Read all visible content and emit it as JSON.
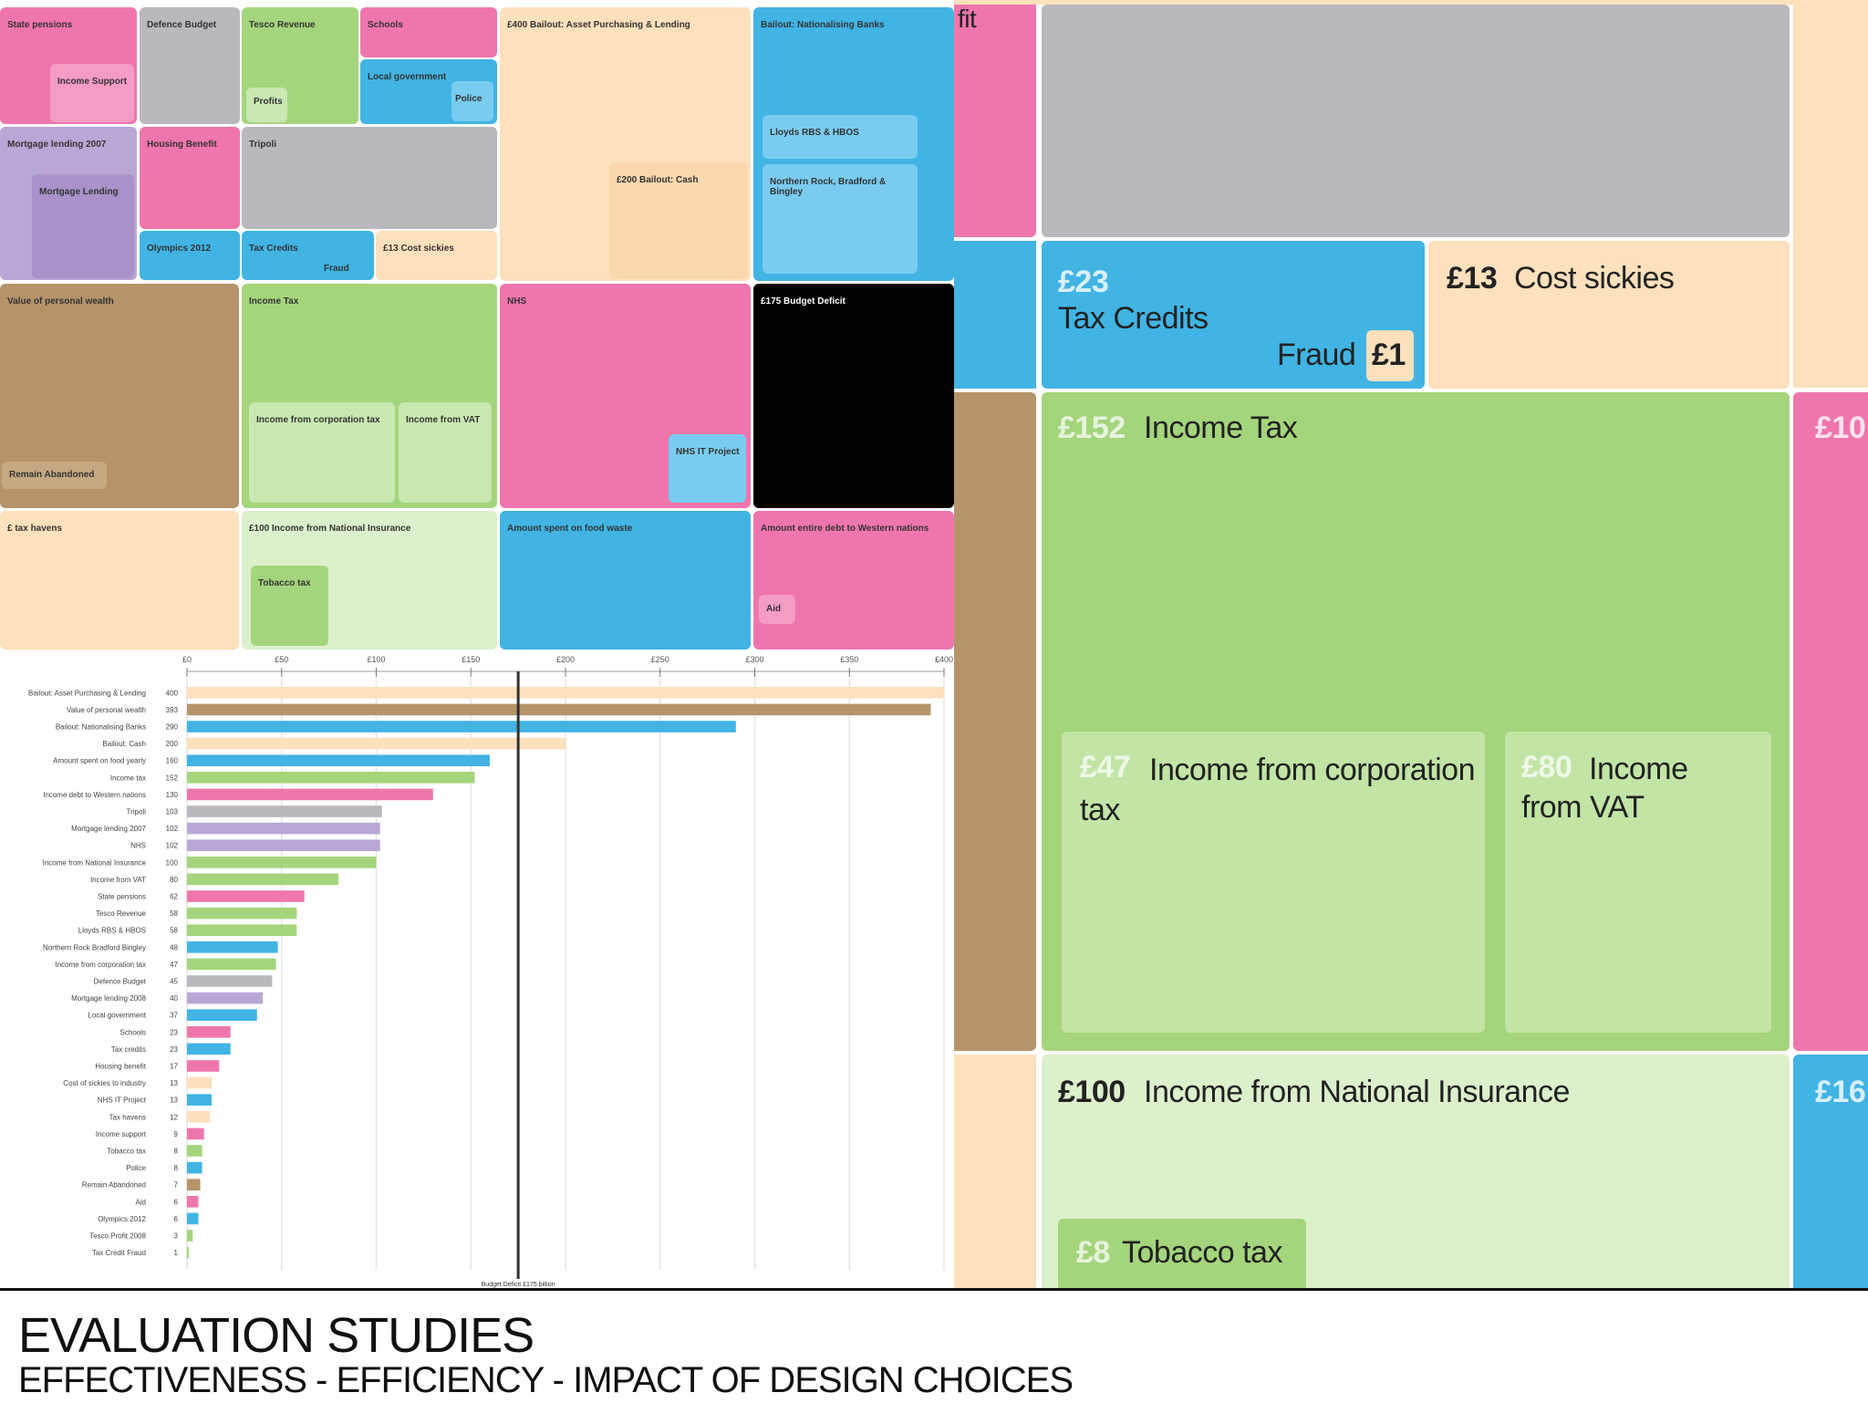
{
  "treemap_small": {
    "labels": {
      "state_pensions": "State pensions",
      "defence_budget": "Defence Budget",
      "tesco_revenue": "Tesco Revenue",
      "schools": "Schools",
      "bailout_purchasing": "£400 Bailout: Asset Purchasing & Lending",
      "bailout_nationalising": "Bailout: Nationalising Banks",
      "income_support": "Income Support",
      "profits": "Profits",
      "local_gov": "Local government",
      "police": "Police",
      "mortgage_2007": "Mortgage lending 2007",
      "housing_benefit": "Housing Benefit",
      "tripoli": "Tripoli",
      "bailout_cash": "£200 Bailout: Cash",
      "lloyds": "Lloyds RBS & HBOS",
      "mortgage_lending": "Mortgage Lending",
      "olympics": "Olympics 2012",
      "tax_credits": "Tax Credits",
      "fraud": "Fraud",
      "cost_sickies": "£13 Cost sickies",
      "northern": "Northern Rock, Bradford & Bingley",
      "value_personal": "Value of personal wealth",
      "income_tax": "Income Tax",
      "nhs": "NHS",
      "budget_deficit": "£175 Budget Deficit",
      "income_corp": "Income from corporation tax",
      "income_vat": "Income from VAT",
      "nhs_it": "NHS IT Project",
      "remain_abandoned": "Remain Abandoned",
      "tax_havens": "£ tax havens",
      "ni": "£100 Income from National Insurance",
      "food_waste": "Amount spent on food waste",
      "aid": "Amount entire debt to Western nations",
      "tobacco": "Tobacco tax",
      "aid_small": "Aid"
    }
  },
  "treemap_zoom": {
    "fit_fragment": "fit",
    "tax_credits_value": "£23",
    "tax_credits_label": "Tax Credits",
    "fraud_label": "Fraud",
    "fraud_value": "£1",
    "cost_sickies_value": "£13",
    "cost_sickies_label": "Cost sickies",
    "income_tax_value": "£152",
    "income_tax_label": "Income Tax",
    "edge_value_1": "£10",
    "corp_value": "£47",
    "corp_label": "Income from corporation tax",
    "vat_value": "£80",
    "vat_label": "Income from VAT",
    "ni_value": "£100",
    "ni_label": "Income from National Insurance",
    "edge_value_2": "£16",
    "tobacco_value": "£8",
    "tobacco_label": "Tobacco tax"
  },
  "chart_data": {
    "type": "bar",
    "orientation": "horizontal",
    "xlim": [
      0,
      400
    ],
    "x_ticks": [
      "£0",
      "£50",
      "£100",
      "£150",
      "£200",
      "£250",
      "£300",
      "£350",
      "£400"
    ],
    "reference_line": 175,
    "reference_label": "Budget Deficit £175 billion",
    "categories": [
      "Bailout: Asset Purchasing & Lending",
      "Value of personal wealth",
      "Bailout: Nationalising Banks",
      "Bailout: Cash",
      "Amount spent on food yearly",
      "Income tax",
      "Income debt to Western nations",
      "Tripoli",
      "Mortgage lending 2007",
      "NHS",
      "Income from National Insurance",
      "Income from VAT",
      "State pensions",
      "Tesco Revenue",
      "Lloyds RBS & HBOS",
      "Northern Rock Bradford Bingley",
      "Income from corporation tax",
      "Defence Budget",
      "Mortgage lending 2008",
      "Local government",
      "Schools",
      "Tax credits",
      "Housing benefit",
      "Cost of sickies to industry",
      "NHS IT Project",
      "Tax havens",
      "Income support",
      "Tobacco tax",
      "Police",
      "Remain Abandoned",
      "Aid",
      "Olympics 2012",
      "Tesco Profit 2008",
      "Tax Credit Fraud"
    ],
    "values": [
      400,
      393,
      290,
      200,
      160,
      152,
      130,
      103,
      102,
      102,
      100,
      80,
      62,
      58,
      58,
      48,
      47,
      45,
      40,
      37,
      23,
      23,
      17,
      13,
      13,
      12,
      9,
      8,
      8,
      7,
      6,
      6,
      3,
      1
    ],
    "colors": [
      "#fde0bc",
      "#b5946a",
      "#41b4e4",
      "#fde0bc",
      "#41b4e4",
      "#a4d57c",
      "#ef76ad",
      "#b9b9bd",
      "#b9a7d6",
      "#b9a7d6",
      "#a4d57c",
      "#a4d57c",
      "#ef76ad",
      "#a4d57c",
      "#a4d57c",
      "#41b4e4",
      "#a4d57c",
      "#b9b9bd",
      "#b9a7d6",
      "#41b4e4",
      "#ef76ad",
      "#41b4e4",
      "#ef76ad",
      "#fde0bc",
      "#41b4e4",
      "#fde0bc",
      "#ef76ad",
      "#a4d57c",
      "#41b4e4",
      "#b5946a",
      "#ef76ad",
      "#41b4e4",
      "#a4d57c",
      "#a4d57c"
    ]
  },
  "footer": {
    "title": "EVALUATION STUDIES",
    "subtitle": "EFFECTIVENESS - EFFICIENCY - IMPACT OF DESIGN CHOICES"
  },
  "colors": {
    "pink": "#ef76ad",
    "grey": "#b9b9bd",
    "green": "#a4d57c",
    "light_green": "#c9e8b2",
    "peach": "#fde0bc",
    "blue": "#41b4e4",
    "light_blue": "#79ccef",
    "purple": "#b9a7d6",
    "brown": "#b5946a",
    "black": "#000000"
  }
}
